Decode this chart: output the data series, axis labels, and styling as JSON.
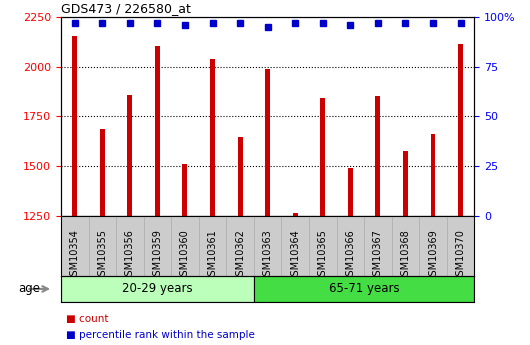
{
  "title": "GDS473 / 226580_at",
  "samples": [
    "GSM10354",
    "GSM10355",
    "GSM10356",
    "GSM10359",
    "GSM10360",
    "GSM10361",
    "GSM10362",
    "GSM10363",
    "GSM10364",
    "GSM10365",
    "GSM10366",
    "GSM10367",
    "GSM10368",
    "GSM10369",
    "GSM10370"
  ],
  "counts": [
    2155,
    1685,
    1860,
    2105,
    1510,
    2040,
    1645,
    1990,
    1265,
    1845,
    1490,
    1855,
    1575,
    1660,
    2115
  ],
  "percentile_ranks": [
    97,
    97,
    97,
    97,
    96,
    97,
    97,
    95,
    97,
    97,
    96,
    97,
    97,
    97,
    97
  ],
  "groups": [
    {
      "label": "20-29 years",
      "start": 0,
      "end": 7,
      "color": "#bbffbb"
    },
    {
      "label": "65-71 years",
      "start": 7,
      "end": 15,
      "color": "#44dd44"
    }
  ],
  "ylim_left": [
    1250,
    2250
  ],
  "ylim_right": [
    0,
    100
  ],
  "yticks_left": [
    1250,
    1500,
    1750,
    2000,
    2250
  ],
  "yticks_right": [
    0,
    25,
    50,
    75,
    100
  ],
  "ytick_labels_right": [
    "0",
    "25",
    "50",
    "75",
    "100%"
  ],
  "bar_color": "#cc0000",
  "dot_color": "#0000cc",
  "dot_marker": "s",
  "dot_size": 5,
  "bar_width": 0.18,
  "grid_color": "black",
  "grid_linestyle": "dotted",
  "age_label": "age",
  "legend_items": [
    {
      "color": "#cc0000",
      "label": "count"
    },
    {
      "color": "#0000cc",
      "label": "percentile rank within the sample"
    }
  ],
  "xtick_area_color": "#cccccc",
  "background_color": "#ffffff",
  "n_group1": 7,
  "n_group2": 8
}
